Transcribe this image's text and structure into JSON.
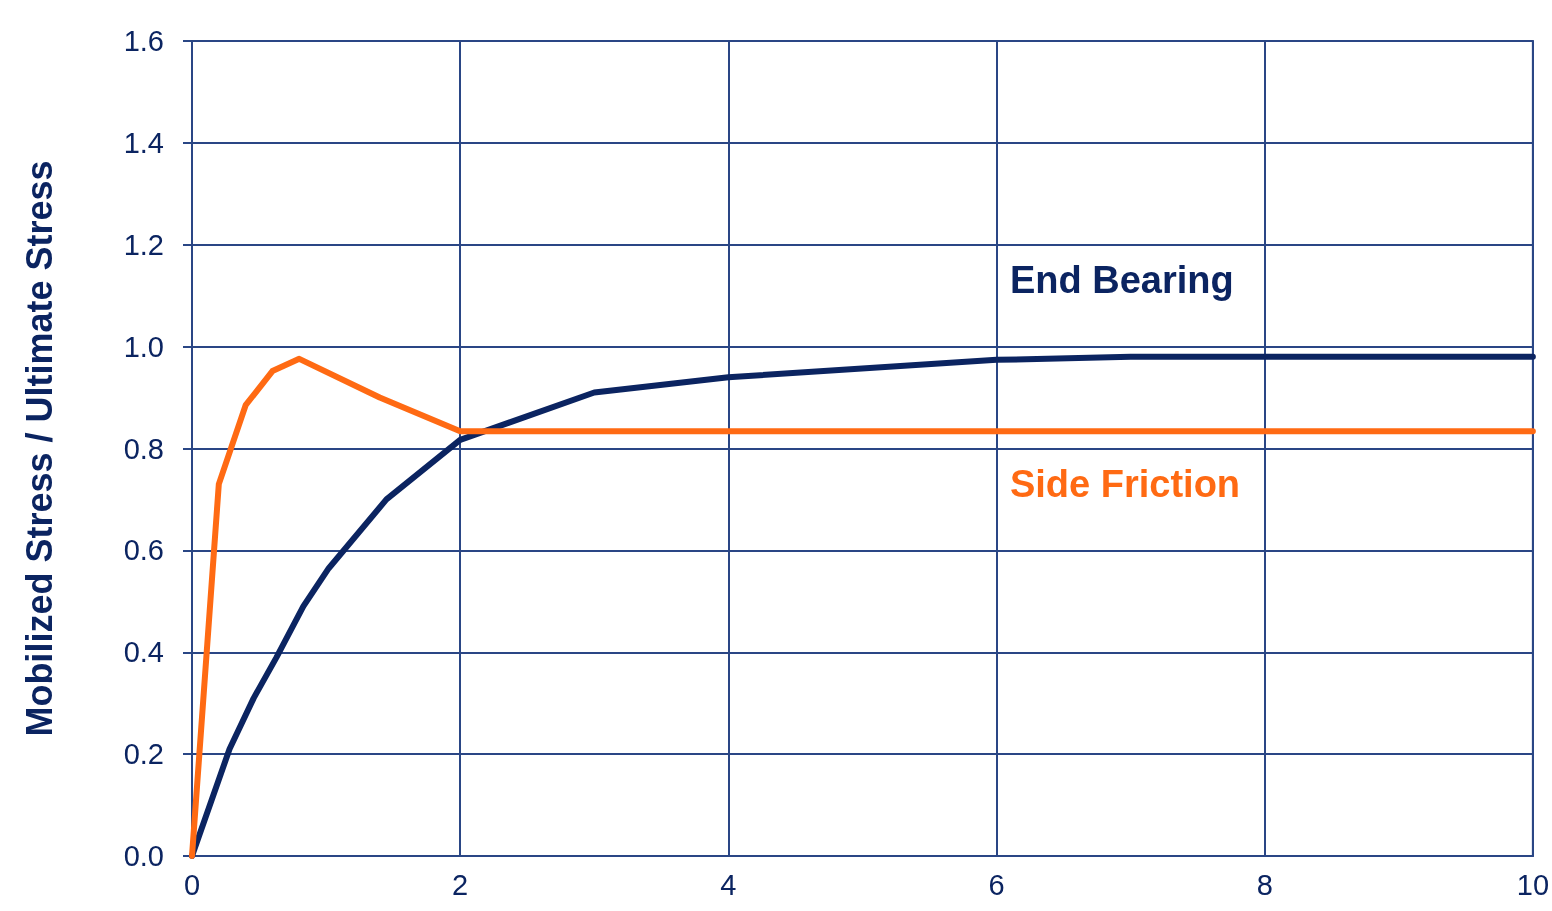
{
  "chart_data": {
    "type": "line",
    "ylabel": "Mobilized Stress / Ultimate Stress",
    "xlim": [
      0,
      10
    ],
    "xticks": [
      0,
      2,
      4,
      6,
      8,
      10
    ],
    "ylim": [
      0,
      1.6
    ],
    "yticks": [
      {
        "value": 0,
        "label": "0.0"
      },
      {
        "value": 0.2,
        "label": "0.2"
      },
      {
        "value": 0.4,
        "label": "0.4"
      },
      {
        "value": 0.6,
        "label": "0.6"
      },
      {
        "value": 0.8,
        "label": "0.8"
      },
      {
        "value": 1,
        "label": "1.0"
      },
      {
        "value": 1.2,
        "label": "1.2"
      },
      {
        "value": 1.4,
        "label": "1.4"
      },
      {
        "value": 1.6,
        "label": "1.6"
      }
    ],
    "grid": true,
    "legend": false,
    "marker": "none",
    "line_style": "solid",
    "series": [
      {
        "name": "End Bearing",
        "color": "#0b2461",
        "x": [
          0,
          0.28,
          0.46,
          0.63,
          0.83,
          1.02,
          1.45,
          2.0,
          3.0,
          4.0,
          6.0,
          7.0,
          10.0
        ],
        "values": [
          0,
          0.21,
          0.31,
          0.39,
          0.49,
          0.565,
          0.7,
          0.817,
          0.91,
          0.94,
          0.974,
          0.98,
          0.98
        ]
      },
      {
        "name": "Side Friction",
        "color": "#ff6a13",
        "x": [
          0,
          0.2,
          0.4,
          0.6,
          0.8,
          1.4,
          2.0,
          10.0
        ],
        "values": [
          0,
          0.73,
          0.885,
          0.952,
          0.976,
          0.9,
          0.834,
          0.834
        ]
      }
    ]
  }
}
